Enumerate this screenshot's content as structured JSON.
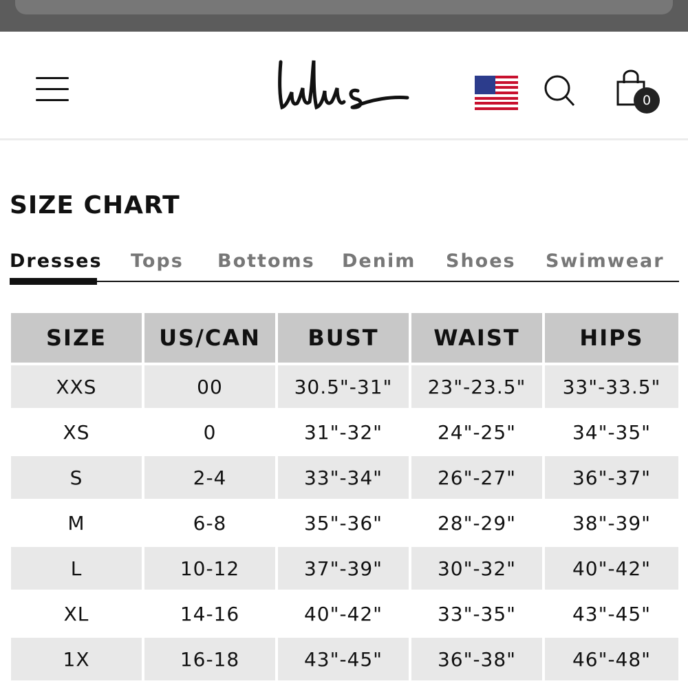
{
  "header": {
    "logo": "Lulus",
    "cart_count": "0",
    "icons": [
      "hamburger-menu-icon",
      "us-flag-icon",
      "search-icon",
      "shopping-bag-icon"
    ]
  },
  "page_title": "SIZE CHART",
  "tabs": [
    {
      "label": "Dresses",
      "active": true
    },
    {
      "label": "Tops"
    },
    {
      "label": "Bottoms"
    },
    {
      "label": "Denim"
    },
    {
      "label": "Shoes"
    },
    {
      "label": "Swimwear"
    }
  ],
  "table": {
    "columns": [
      "SIZE",
      "US/CAN",
      "BUST",
      "WAIST",
      "HIPS"
    ],
    "rows": [
      [
        "XXS",
        "00",
        "30.5\"-31\"",
        "23\"-23.5\"",
        "33\"-33.5\""
      ],
      [
        "XS",
        "0",
        "31\"-32\"",
        "24\"-25\"",
        "34\"-35\""
      ],
      [
        "S",
        "2-4",
        "33\"-34\"",
        "26\"-27\"",
        "36\"-37\""
      ],
      [
        "M",
        "6-8",
        "35\"-36\"",
        "28\"-29\"",
        "38\"-39\""
      ],
      [
        "L",
        "10-12",
        "37\"-39\"",
        "30\"-32\"",
        "40\"-42\""
      ],
      [
        "XL",
        "14-16",
        "40\"-42\"",
        "33\"-35\"",
        "43\"-45\""
      ],
      [
        "1X",
        "16-18",
        "43\"-45\"",
        "36\"-38\"",
        "46\"-48\""
      ]
    ]
  }
}
